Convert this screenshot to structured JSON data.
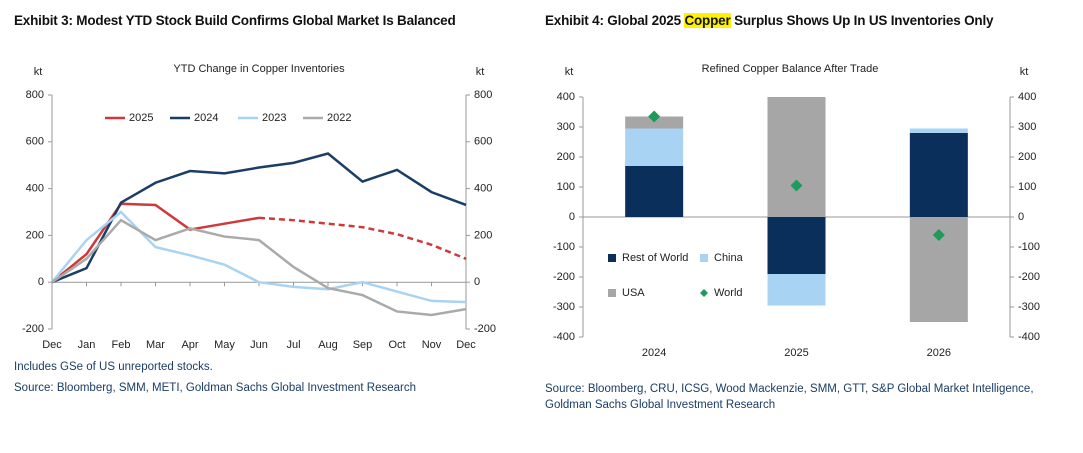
{
  "chart_data": [
    {
      "type": "line",
      "title": "Exhibit 3: Modest YTD Stock Build Confirms Global Market Is Balanced",
      "subtitle": "YTD Change in Copper Inventories",
      "y_label": "kt",
      "y2_label": "kt",
      "categories": [
        "Dec",
        "Jan",
        "Feb",
        "Mar",
        "Apr",
        "May",
        "Jun",
        "Jul",
        "Aug",
        "Sep",
        "Oct",
        "Nov",
        "Dec"
      ],
      "series": [
        {
          "name": "2025",
          "color": "#d0393b",
          "dashed_from": 6,
          "values": [
            0,
            120,
            335,
            330,
            225,
            250,
            275,
            265,
            250,
            235,
            205,
            160,
            100
          ]
        },
        {
          "name": "2024",
          "color": "#1b3d66",
          "values": [
            0,
            60,
            340,
            425,
            475,
            465,
            490,
            510,
            550,
            430,
            480,
            385,
            330
          ]
        },
        {
          "name": "2023",
          "color": "#a9d3f2",
          "values": [
            0,
            180,
            300,
            150,
            115,
            75,
            0,
            -20,
            -30,
            0,
            -40,
            -80,
            -85
          ]
        },
        {
          "name": "2022",
          "color": "#aaaaaa",
          "values": [
            0,
            100,
            265,
            180,
            230,
            195,
            180,
            65,
            -25,
            -55,
            -125,
            -140,
            -115
          ]
        }
      ],
      "ylim": [
        -200,
        800
      ],
      "yticks": [
        -200,
        0,
        200,
        400,
        600,
        800
      ],
      "y2lim": [
        -200,
        800
      ],
      "y2ticks": [
        -200,
        0,
        200,
        400,
        600,
        800
      ],
      "legend": "top",
      "notes": [
        "Includes GSe of US unreported stocks.",
        "Source: Bloomberg, SMM, METI, Goldman Sachs Global Investment Research"
      ]
    },
    {
      "type": "bar",
      "stacked": true,
      "title": [
        "Exhibit 4: Global 2025 ",
        "Copper",
        " Surplus Shows Up In US Inventories Only"
      ],
      "title_highlight": 1,
      "subtitle": "Refined Copper Balance After Trade",
      "y_label": "kt",
      "y2_label": "kt",
      "categories": [
        "2024",
        "2025",
        "2026"
      ],
      "series": [
        {
          "name": "Rest of World",
          "color": "#0b2f5b",
          "values": [
            170,
            -190,
            280
          ]
        },
        {
          "name": "China",
          "color": "#a9d3f2",
          "values": [
            125,
            -105,
            15
          ]
        },
        {
          "name": "USA",
          "color": "#a6a6a6",
          "values": [
            40,
            400,
            -350
          ]
        },
        {
          "name": "World",
          "type": "scatter",
          "marker": "diamond",
          "color": "#1e9a5a",
          "values": [
            335,
            105,
            -60
          ]
        }
      ],
      "ylim": [
        -400,
        400
      ],
      "yticks": [
        -400,
        -300,
        -200,
        -100,
        0,
        100,
        200,
        300,
        400
      ],
      "y2lim": [
        -400,
        400
      ],
      "y2ticks": [
        -400,
        -300,
        -200,
        -100,
        0,
        100,
        200,
        300,
        400
      ],
      "legend": "lower left",
      "notes": [
        "Source: Bloomberg, CRU, ICSG, Wood Mackenzie, SMM, GTT, S&P Global Market Intelligence,",
        "Goldman Sachs Global Investment Research"
      ]
    }
  ]
}
